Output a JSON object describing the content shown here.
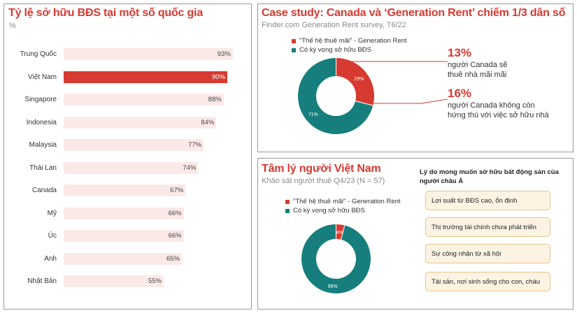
{
  "left": {
    "title": "Tỷ lệ sở hữu BĐS tại một số quốc gia",
    "unit": "%"
  },
  "top_right": {
    "title": "Case study: Canada và ‘Generation Rent’ chiếm 1/3 dân số",
    "subtitle": "Finder.com Generation Rent survey, T6/22",
    "legend": [
      "\"Thế hệ thuê mãi\" - Generation Rent",
      "Có kỳ vọng sở hữu BĐS"
    ],
    "stat1": {
      "pct": "13%",
      "line1": "người Canada sẽ",
      "line2": "thuê nhà mãi mãi"
    },
    "stat2": {
      "pct": "16%",
      "line1": "người Canada không còn",
      "line2": "hứng thú với việc sở hữu nhà"
    }
  },
  "bottom_right": {
    "title": "Tâm lý người Việt Nam",
    "subtitle": "Khảo sát người thuê Q4/23 (N = 57)",
    "legend": [
      "\"Thế hệ thuê mãi\" - Generation Rent",
      "Có kỳ vọng sở hữu BĐS"
    ],
    "reasons_title_line1": "Lý do mong muốn sở hữu bất động sản của",
    "reasons_title_line2": "người châu Á",
    "reasons": [
      "Lợi suất từ BĐS cao, ổn định",
      "Thị trường tài chính chưa phát triển",
      "Sự công nhận từ xã hội",
      "Tài sản, nơi sinh sống cho con, cháu"
    ]
  },
  "colors": {
    "red": "#d63a31",
    "teal": "#167f7e",
    "pale": "#fbe9e8"
  },
  "chart_data": [
    {
      "type": "bar",
      "orientation": "horizontal",
      "title": "Tỷ lệ sở hữu BĐS tại một số quốc gia",
      "ylabel": "%",
      "categories": [
        "Trung Quốc",
        "Việt Nam",
        "Singapore",
        "Indonesia",
        "Malaysia",
        "Thái Lan",
        "Canada",
        "Mỹ",
        "Úc",
        "Anh",
        "Nhật Bản"
      ],
      "values": [
        93,
        90,
        88,
        84,
        77,
        74,
        67,
        66,
        66,
        65,
        55
      ],
      "labels": [
        "93%",
        "90%",
        "88%",
        "84%",
        "77%",
        "74%",
        "67%",
        "66%",
        "66%",
        "65%",
        "55%"
      ],
      "highlight": "Việt Nam",
      "xlim": [
        0,
        100
      ]
    },
    {
      "type": "pie",
      "title": "Case study: Canada",
      "categories": [
        "\"Thế hệ thuê mãi\" - Generation Rent",
        "Có kỳ vọng sở hữu BĐS"
      ],
      "values": [
        29,
        71
      ],
      "labels": [
        "29%",
        "71%"
      ]
    },
    {
      "type": "pie",
      "title": "Tâm lý người Việt Nam",
      "categories": [
        "\"Thế hệ thuê mãi\" - Generation Rent",
        "Có kỳ vọng sở hữu BĐS"
      ],
      "values": [
        4,
        96
      ],
      "labels": [
        "4%",
        "96%"
      ]
    }
  ]
}
